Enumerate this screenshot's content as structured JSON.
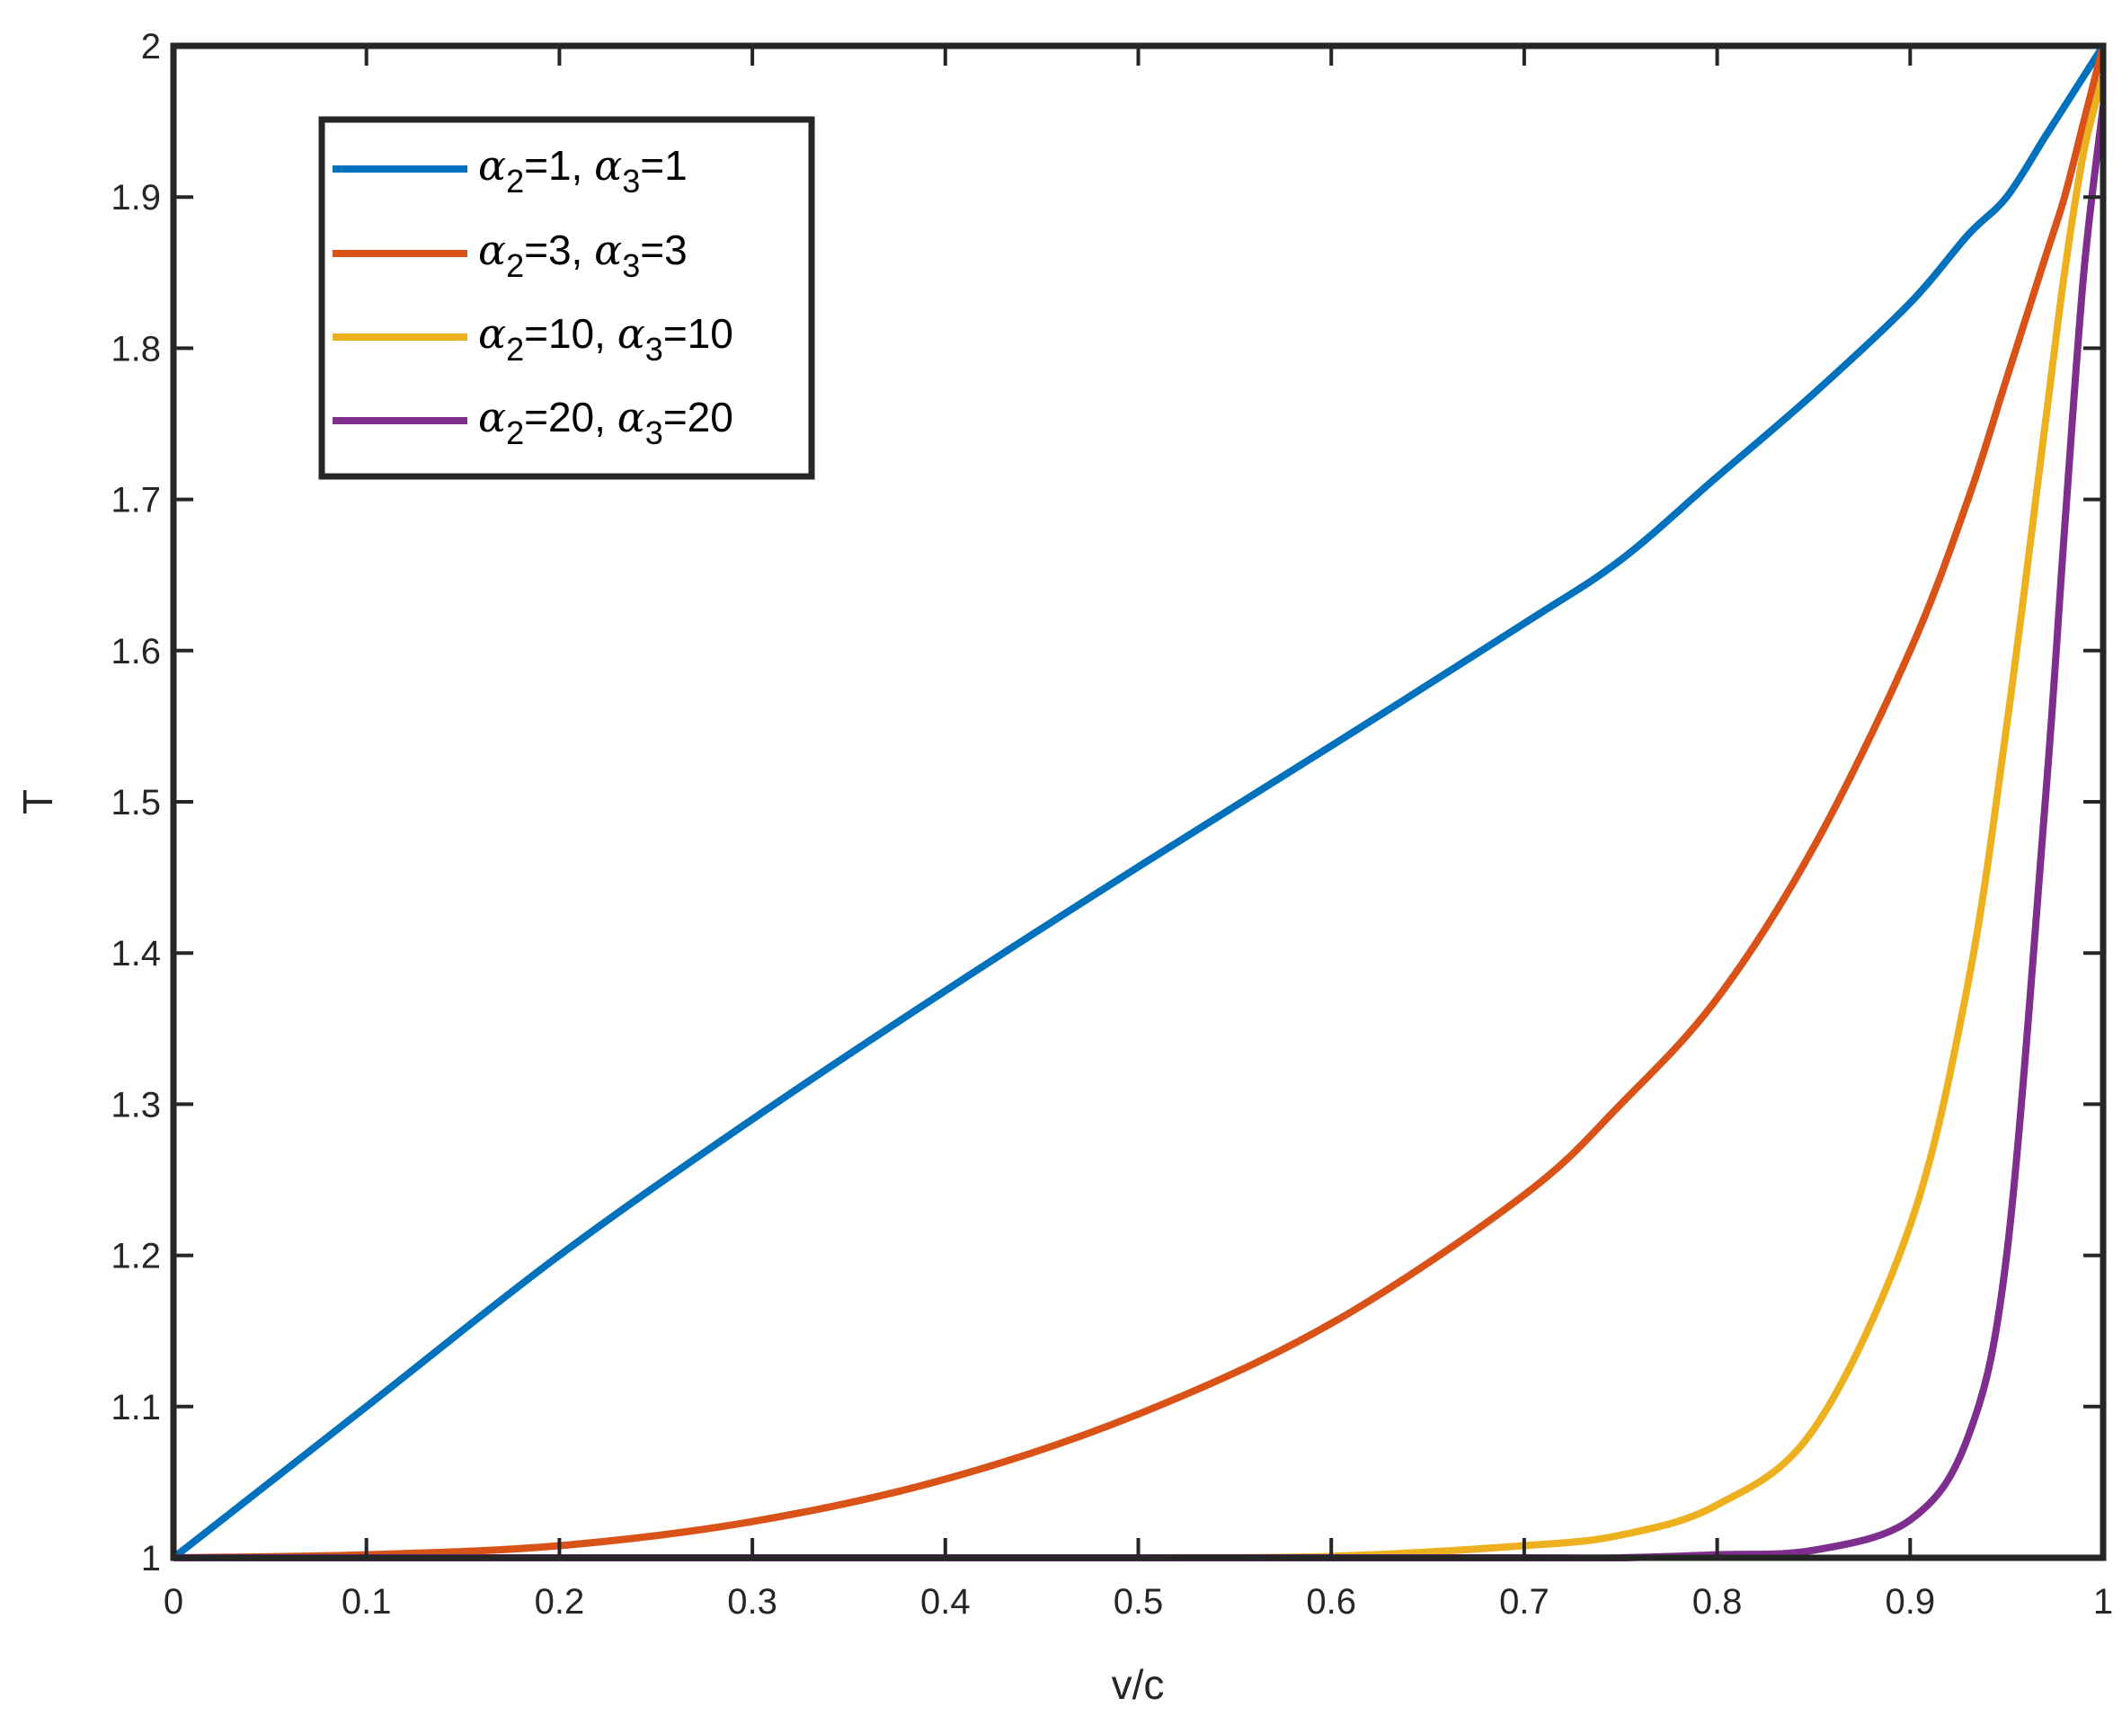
{
  "chart_data": {
    "type": "line",
    "title": "",
    "xlabel": "v/c",
    "ylabel": "T",
    "xlim": [
      0,
      1
    ],
    "ylim": [
      1,
      2
    ],
    "xticks": [
      0,
      0.1,
      0.2,
      0.3,
      0.4,
      0.5,
      0.6,
      0.7,
      0.8,
      0.9,
      1
    ],
    "xtick_labels": [
      "0",
      "0.1",
      "0.2",
      "0.3",
      "0.4",
      "0.5",
      "0.6",
      "0.7",
      "0.8",
      "0.9",
      "1"
    ],
    "yticks": [
      1,
      1.1,
      1.2,
      1.3,
      1.4,
      1.5,
      1.6,
      1.7,
      1.8,
      1.9,
      2
    ],
    "ytick_labels": [
      "1",
      "1.1",
      "1.2",
      "1.3",
      "1.4",
      "1.5",
      "1.6",
      "1.7",
      "1.8",
      "1.9",
      "2"
    ],
    "grid": false,
    "legend_position": "top-left",
    "x": [
      0,
      0.1,
      0.2,
      0.3,
      0.4,
      0.5,
      0.6,
      0.7,
      0.75,
      0.8,
      0.85,
      0.9,
      0.93,
      0.95,
      0.97,
      0.98,
      0.99,
      1
    ],
    "series": [
      {
        "legend_parts": [
          "α",
          "2",
          "=1, ",
          "α",
          "3",
          "=1"
        ],
        "color": "#0072BD",
        "values": [
          1.0,
          1.1,
          1.2,
          1.29,
          1.375,
          1.457,
          1.537,
          1.618,
          1.66,
          1.715,
          1.77,
          1.83,
          1.875,
          1.9,
          1.94,
          1.96,
          1.98,
          2.0
        ]
      },
      {
        "legend_parts": [
          "α",
          "2",
          "=3, ",
          "α",
          "3",
          "=3"
        ],
        "color": "#D95319",
        "values": [
          1.0,
          1.002,
          1.008,
          1.024,
          1.052,
          1.095,
          1.155,
          1.24,
          1.3,
          1.37,
          1.47,
          1.6,
          1.7,
          1.78,
          1.86,
          1.9,
          1.95,
          2.0
        ]
      },
      {
        "legend_parts": [
          "α",
          "2",
          "=10, ",
          "α",
          "3",
          "=10"
        ],
        "color": "#EDB120",
        "values": [
          1.0,
          1.0,
          1.0,
          1.0,
          1.0,
          1.0,
          1.001,
          1.008,
          1.015,
          1.035,
          1.085,
          1.22,
          1.38,
          1.55,
          1.75,
          1.85,
          1.93,
          1.98
        ]
      },
      {
        "legend_parts": [
          "α",
          "2",
          "=20, ",
          "α",
          "3",
          "=20"
        ],
        "color": "#7E2F8E",
        "values": [
          1.0,
          1.0,
          1.0,
          1.0,
          1.0,
          1.0,
          1.0,
          1.0,
          1.0,
          1.002,
          1.005,
          1.025,
          1.08,
          1.2,
          1.5,
          1.68,
          1.85,
          1.96
        ]
      }
    ]
  }
}
